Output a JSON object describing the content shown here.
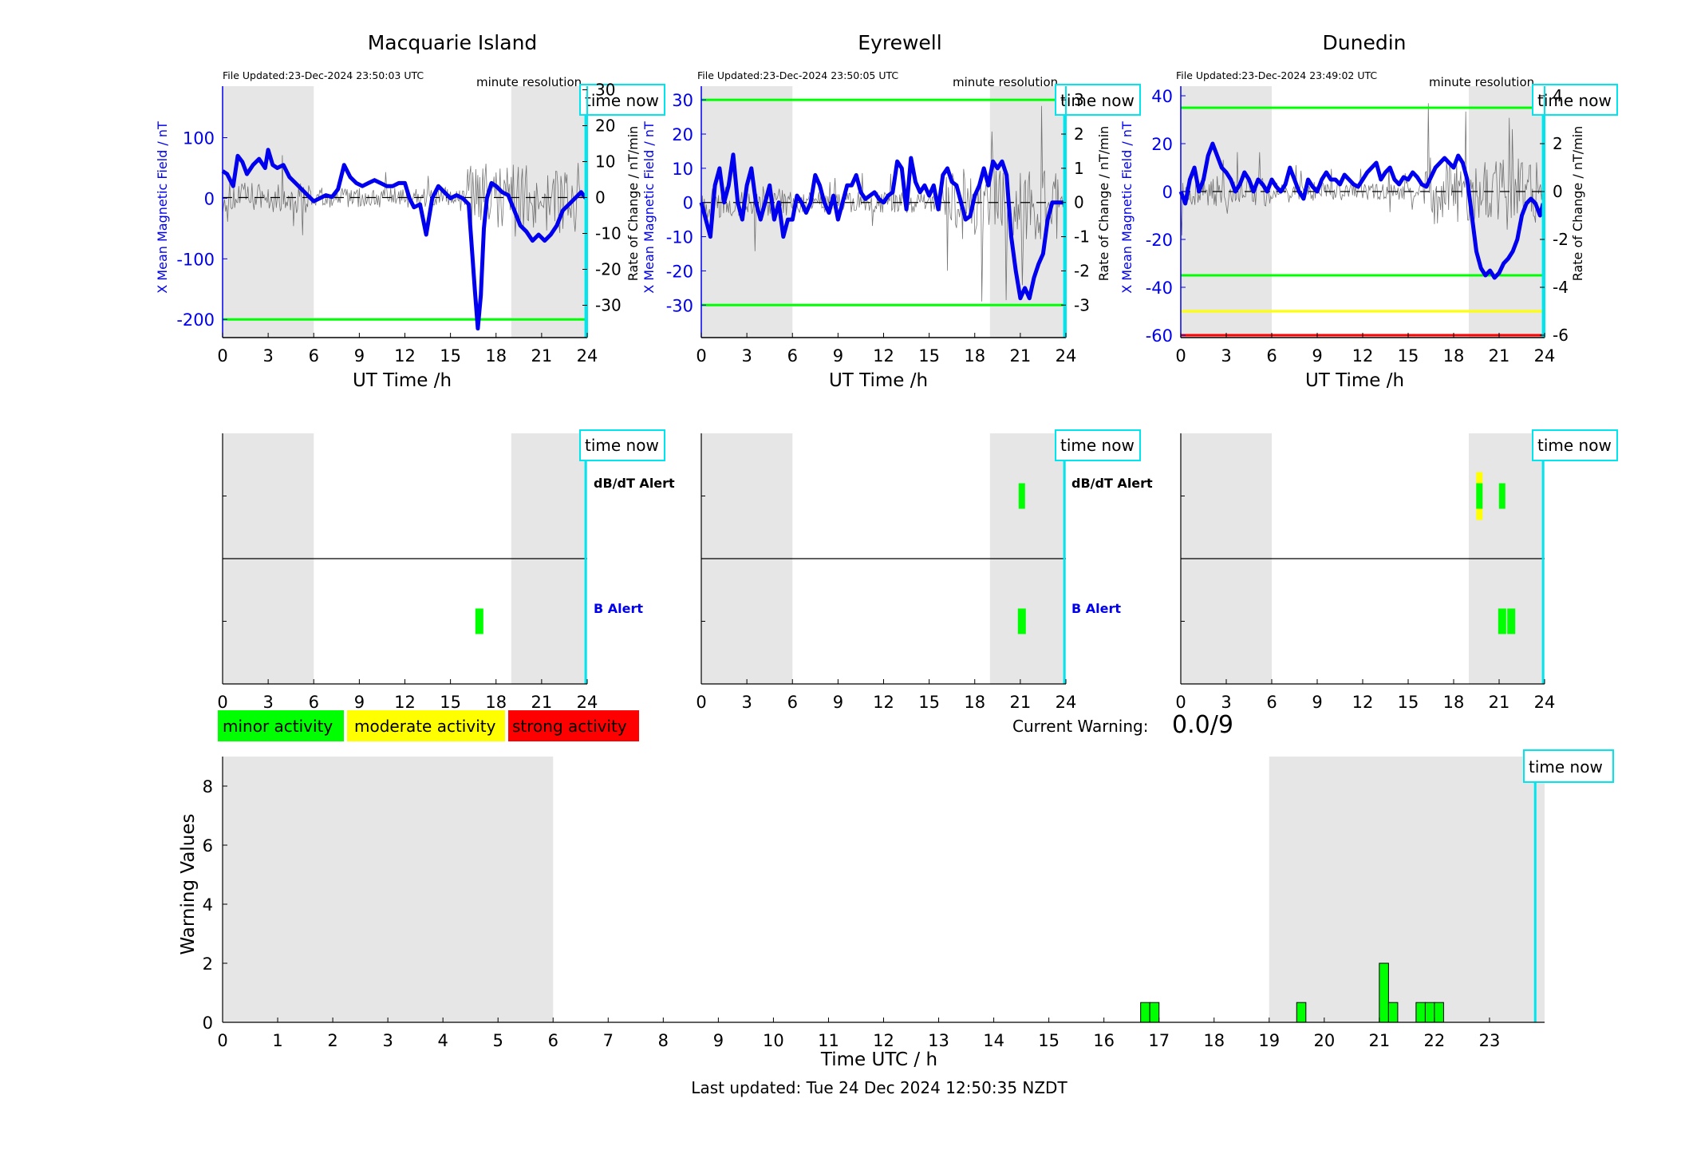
{
  "colors": {
    "blue": "#0000ee",
    "green": "#00ff00",
    "yellow": "#ffff00",
    "red": "#ff0000",
    "cyan": "#00e5ee",
    "night_shade": "#e6e6e6",
    "noise": "#555555"
  },
  "common": {
    "xlabel": "UT Time /h",
    "x_ticks": [
      "0",
      "3",
      "6",
      "9",
      "12",
      "15",
      "18",
      "21",
      "24"
    ],
    "resolution_label": "minute resolution",
    "time_now_label": "time now",
    "ylabel_left": "X Mean Magnetic Field / nT",
    "ylabel_right": "Rate of Change / nT/min",
    "dbdt_alert_label": "dB/dT Alert",
    "b_alert_label": "B Alert"
  },
  "legend": {
    "minor": "minor activity",
    "moderate": "moderate activity",
    "strong": "strong activity"
  },
  "current_warning": {
    "label": "Current Warning:",
    "value": "0.0/9"
  },
  "footer": {
    "last_updated": "Last updated: Tue 24 Dec 2024 12:50:35 NZDT"
  },
  "chart_data": [
    {
      "type": "line",
      "title": "Macquarie Island",
      "file_updated": "File Updated:23-Dec-2024 23:50:03 UTC",
      "xlabel": "UT Time /h",
      "ylabel": "X Mean Magnetic Field / nT",
      "ylabel_right": "Rate of Change / nT/min",
      "xlim": [
        0,
        24
      ],
      "ylim": [
        -230,
        185
      ],
      "ylim_right": [
        -39,
        31
      ],
      "y_ticks": [
        100,
        0,
        -100,
        -200
      ],
      "y_ticks_right": [
        30,
        20,
        10,
        0,
        -10,
        -20,
        -30
      ],
      "shaded_hours": [
        [
          0,
          6
        ],
        [
          19,
          24
        ]
      ],
      "threshold_lines": [
        {
          "y": -200,
          "color": "#00ff00"
        }
      ],
      "time_now": 23.9,
      "series": [
        {
          "x": [
            0,
            0.3,
            0.7,
            1,
            1.3,
            1.6,
            2,
            2.4,
            2.8,
            3,
            3.3,
            3.6,
            4,
            4.4,
            4.8,
            5.2,
            5.6,
            6,
            6.4,
            6.8,
            7.2,
            7.6,
            8,
            8.4,
            8.8,
            9.2,
            9.6,
            10,
            10.4,
            10.8,
            11.2,
            11.6,
            12,
            12.3,
            12.6,
            13,
            13.4,
            13.8,
            14.2,
            14.6,
            15,
            15.4,
            15.8,
            16.2,
            16.4,
            16.6,
            16.8,
            17,
            17.2,
            17.4,
            17.7,
            18,
            18.4,
            18.8,
            19.2,
            19.6,
            20,
            20.4,
            20.8,
            21.2,
            21.6,
            22,
            22.4,
            22.8,
            23.2,
            23.6,
            23.9
          ],
          "values": [
            45,
            40,
            20,
            70,
            60,
            40,
            55,
            65,
            50,
            80,
            55,
            50,
            55,
            35,
            25,
            15,
            5,
            -5,
            0,
            5,
            2,
            15,
            55,
            35,
            25,
            20,
            25,
            30,
            25,
            20,
            20,
            25,
            25,
            0,
            -15,
            -10,
            -60,
            0,
            20,
            10,
            0,
            5,
            0,
            -10,
            -80,
            -150,
            -215,
            -160,
            -50,
            0,
            25,
            20,
            10,
            5,
            -20,
            -45,
            -55,
            -70,
            -60,
            -70,
            -60,
            -45,
            -20,
            -10,
            0,
            10,
            0
          ]
        }
      ]
    },
    {
      "type": "line",
      "title": "Eyrewell",
      "file_updated": "File Updated:23-Dec-2024 23:50:05 UTC",
      "xlabel": "UT Time /h",
      "ylabel": "X Mean Magnetic Field / nT",
      "ylabel_right": "Rate of Change / nT/min",
      "xlim": [
        0,
        24
      ],
      "ylim": [
        -39.5,
        34
      ],
      "ylim_right": [
        -3.95,
        3.4
      ],
      "y_ticks": [
        30,
        20,
        10,
        0,
        -10,
        -20,
        -30
      ],
      "y_ticks_right": [
        3,
        2,
        1,
        0,
        -1,
        -2,
        -3
      ],
      "shaded_hours": [
        [
          0,
          6
        ],
        [
          19,
          24
        ]
      ],
      "threshold_lines": [
        {
          "y": 30,
          "color": "#00ff00"
        },
        {
          "y": -30,
          "color": "#00ff00"
        }
      ],
      "time_now": 23.9,
      "series": [
        {
          "x": [
            0,
            0.3,
            0.6,
            0.9,
            1.2,
            1.5,
            1.8,
            2.1,
            2.4,
            2.7,
            3,
            3.3,
            3.6,
            3.9,
            4.2,
            4.5,
            4.8,
            5.1,
            5.4,
            5.7,
            6,
            6.3,
            6.6,
            6.9,
            7.2,
            7.5,
            7.8,
            8.1,
            8.4,
            8.7,
            9,
            9.3,
            9.6,
            9.9,
            10.2,
            10.5,
            10.8,
            11.1,
            11.4,
            11.7,
            12,
            12.3,
            12.6,
            12.9,
            13.2,
            13.5,
            13.8,
            14.1,
            14.4,
            14.7,
            15,
            15.3,
            15.6,
            15.9,
            16.2,
            16.5,
            16.8,
            17.1,
            17.4,
            17.7,
            18,
            18.3,
            18.6,
            18.9,
            19.2,
            19.5,
            19.8,
            20.1,
            20.4,
            20.7,
            21,
            21.3,
            21.6,
            21.9,
            22.2,
            22.5,
            22.8,
            23.1,
            23.4,
            23.7,
            24
          ],
          "values": [
            0,
            -5,
            -10,
            5,
            10,
            0,
            5,
            14,
            0,
            -5,
            5,
            10,
            0,
            -5,
            0,
            5,
            -5,
            0,
            -10,
            -5,
            -5,
            2,
            0,
            -3,
            0,
            8,
            5,
            0,
            -3,
            2,
            -5,
            0,
            5,
            5,
            8,
            3,
            1,
            2,
            3,
            1,
            0,
            2,
            3,
            12,
            10,
            -2,
            13,
            6,
            3,
            5,
            2,
            5,
            -2,
            8,
            10,
            6,
            5,
            0,
            -5,
            -4,
            2,
            5,
            10,
            5,
            12,
            10,
            12,
            8,
            -10,
            -20,
            -28,
            -25,
            -28,
            -22,
            -18,
            -15,
            -5,
            0,
            0,
            0,
            0
          ]
        }
      ]
    },
    {
      "type": "line",
      "title": "Dunedin",
      "file_updated": "File Updated:23-Dec-2024 23:49:02 UTC",
      "xlabel": "UT Time /h",
      "ylabel": "X Mean Magnetic Field / nT",
      "ylabel_right": "Rate of Change / nT/min",
      "xlim": [
        0,
        24
      ],
      "ylim": [
        -61,
        44
      ],
      "ylim_right": [
        -6.1,
        4.4
      ],
      "y_ticks": [
        40,
        20,
        0,
        -20,
        -40,
        -60
      ],
      "y_ticks_right": [
        4,
        2,
        0,
        -2,
        -4,
        -6
      ],
      "shaded_hours": [
        [
          0,
          6
        ],
        [
          19,
          24
        ]
      ],
      "threshold_lines": [
        {
          "y": 35,
          "color": "#00ff00"
        },
        {
          "y": -35,
          "color": "#00ff00"
        },
        {
          "y": -50,
          "color": "#ffff00"
        },
        {
          "y": -60,
          "color": "#ff0000"
        }
      ],
      "time_now": 23.9,
      "series": [
        {
          "x": [
            0,
            0.3,
            0.6,
            0.9,
            1.2,
            1.5,
            1.8,
            2.1,
            2.4,
            2.7,
            3,
            3.3,
            3.6,
            3.9,
            4.2,
            4.5,
            4.8,
            5.1,
            5.4,
            5.7,
            6,
            6.3,
            6.6,
            6.9,
            7.2,
            7.5,
            7.8,
            8.1,
            8.4,
            8.7,
            9,
            9.3,
            9.6,
            9.9,
            10.2,
            10.5,
            10.8,
            11.1,
            11.4,
            11.7,
            12,
            12.3,
            12.6,
            12.9,
            13.2,
            13.5,
            13.8,
            14.1,
            14.4,
            14.7,
            15,
            15.3,
            15.6,
            15.9,
            16.2,
            16.5,
            16.8,
            17.1,
            17.4,
            17.7,
            18,
            18.3,
            18.6,
            18.9,
            19.2,
            19.5,
            19.8,
            20.1,
            20.4,
            20.7,
            21,
            21.3,
            21.6,
            21.9,
            22.2,
            22.5,
            22.8,
            23.1,
            23.4,
            23.7,
            23.9
          ],
          "values": [
            0,
            -5,
            5,
            10,
            0,
            5,
            15,
            20,
            15,
            10,
            8,
            5,
            0,
            3,
            8,
            5,
            0,
            5,
            3,
            0,
            5,
            2,
            0,
            3,
            10,
            5,
            0,
            -3,
            5,
            2,
            0,
            5,
            8,
            5,
            5,
            3,
            7,
            5,
            3,
            2,
            5,
            8,
            10,
            12,
            5,
            8,
            10,
            5,
            3,
            6,
            5,
            8,
            6,
            3,
            2,
            6,
            10,
            12,
            14,
            12,
            10,
            15,
            12,
            5,
            -10,
            -25,
            -32,
            -35,
            -33,
            -36,
            -34,
            -30,
            -28,
            -25,
            -20,
            -10,
            -5,
            -3,
            -5,
            -10,
            -5
          ]
        }
      ]
    },
    {
      "type": "bar",
      "title": "",
      "xlabel": "Time UTC / h",
      "ylabel": "Warning Values",
      "xlim": [
        0,
        24
      ],
      "ylim": [
        0,
        9
      ],
      "x_ticks": [
        "0",
        "1",
        "2",
        "3",
        "4",
        "5",
        "6",
        "7",
        "8",
        "9",
        "10",
        "11",
        "12",
        "13",
        "14",
        "15",
        "16",
        "17",
        "18",
        "19",
        "20",
        "21",
        "22",
        "23"
      ],
      "y_ticks": [
        "0",
        "2",
        "4",
        "6",
        "8"
      ],
      "shaded_hours": [
        [
          0,
          6
        ],
        [
          19,
          24
        ]
      ],
      "time_now": 23.83,
      "bar_width_h": 0.167,
      "x": [
        16.75,
        16.917,
        19.583,
        21.083,
        21.25,
        21.75,
        21.917,
        22.083
      ],
      "values": [
        0.67,
        0.67,
        0.67,
        2,
        0.67,
        0.67,
        0.67,
        0.67
      ]
    }
  ],
  "alerts": [
    {
      "station": "Macquarie Island",
      "dbdt": [],
      "b": [
        {
          "t": 16.9,
          "level": "minor"
        }
      ]
    },
    {
      "station": "Eyrewell",
      "dbdt": [
        {
          "t": 21.1,
          "level": "minor"
        }
      ],
      "b": [
        {
          "t": 21.1,
          "level": "minor"
        }
      ]
    },
    {
      "station": "Dunedin",
      "dbdt": [
        {
          "t": 19.7,
          "level": "moderate"
        },
        {
          "t": 21.2,
          "level": "minor"
        }
      ],
      "b": [
        {
          "t": 21.2,
          "level": "minor"
        },
        {
          "t": 21.8,
          "level": "minor"
        }
      ]
    }
  ]
}
